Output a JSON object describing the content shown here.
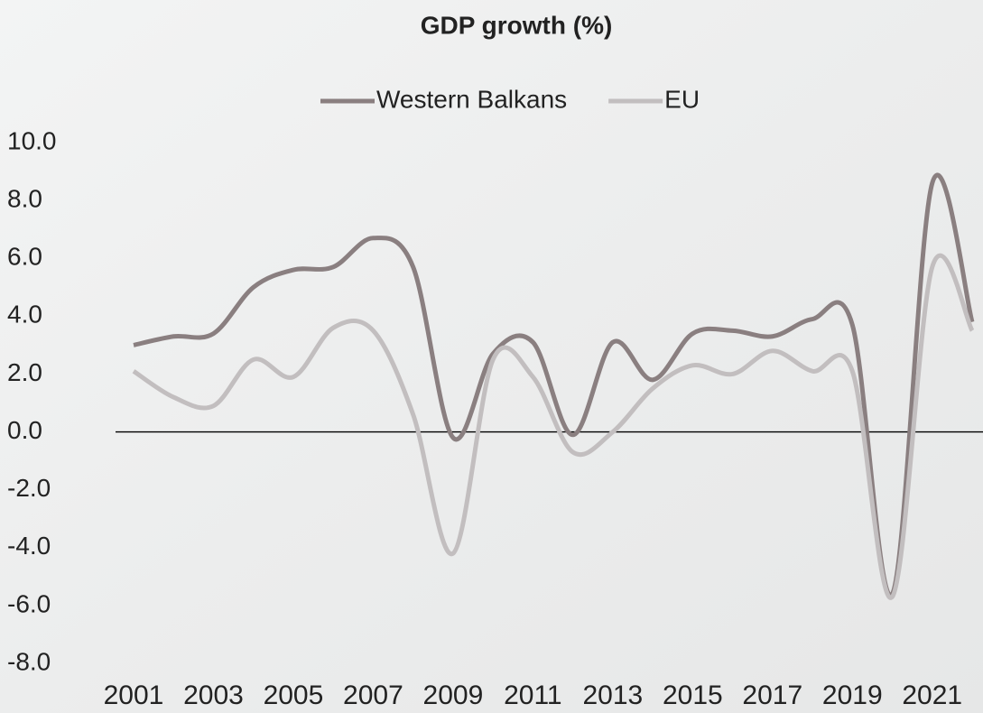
{
  "chart_data": {
    "type": "line",
    "title": "GDP growth (%)",
    "categories": [
      "2001",
      null,
      "2003",
      null,
      "2005",
      null,
      "2007",
      null,
      "2009",
      null,
      "2011",
      null,
      "2013",
      null,
      "2015",
      null,
      "2017",
      null,
      "2019",
      null,
      "2021",
      null
    ],
    "series": [
      {
        "name": "Western Balkans",
        "color": "#8a7f80",
        "values": [
          3.0,
          3.3,
          3.4,
          5.0,
          5.6,
          5.7,
          6.7,
          5.7,
          -0.2,
          2.7,
          3.1,
          -0.1,
          3.1,
          1.8,
          3.4,
          3.5,
          3.3,
          3.9,
          3.7,
          -5.6,
          8.6,
          3.8
        ]
      },
      {
        "name": "EU",
        "color": "#c2bebf",
        "values": [
          2.1,
          1.2,
          0.9,
          2.5,
          1.9,
          3.6,
          3.5,
          0.6,
          -4.2,
          2.5,
          1.9,
          -0.7,
          0.0,
          1.5,
          2.3,
          2.0,
          2.8,
          2.1,
          2.1,
          -5.7,
          5.7,
          3.5
        ]
      }
    ],
    "ylim": [
      -8,
      10
    ],
    "yticks": [
      {
        "value": -8,
        "label": "-8.0"
      },
      {
        "value": -6,
        "label": "-6.0"
      },
      {
        "value": -4,
        "label": "-4.0"
      },
      {
        "value": -2,
        "label": "-2.0"
      },
      {
        "value": 0,
        "label": "0.0"
      },
      {
        "value": 2,
        "label": "2.0"
      },
      {
        "value": 4,
        "label": "4.0"
      },
      {
        "value": 6,
        "label": "6.0"
      },
      {
        "value": 8,
        "label": "8.0"
      },
      {
        "value": 10,
        "label": "10.0"
      }
    ],
    "legend": "top",
    "smooth": true
  }
}
